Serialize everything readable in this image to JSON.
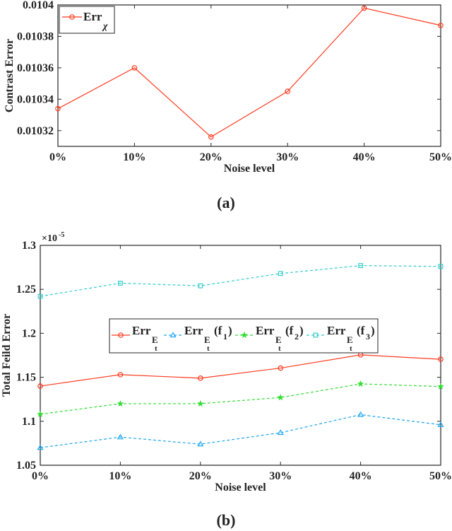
{
  "chart_data": [
    {
      "type": "line",
      "panel_label": "(a)",
      "xlabel": "Noise level",
      "ylabel": "Contrast Error",
      "categories": [
        "0%",
        "10%",
        "20%",
        "30%",
        "40%",
        "50%"
      ],
      "ylim": [
        0.01031,
        0.0104
      ],
      "yticks": [
        0.01032,
        0.01034,
        0.01036,
        0.01038,
        0.0104
      ],
      "ytick_labels": [
        "0.01032",
        "0.01034",
        "0.01036",
        "0.01038",
        "0.0104"
      ],
      "grid": false,
      "legend_position": "top-left",
      "series": [
        {
          "name": "Err",
          "name_subscript": "χ",
          "color": "#ff3b1f",
          "marker": "circle",
          "dash": "solid",
          "values": [
            0.010334,
            0.01036,
            0.010316,
            0.010345,
            0.010398,
            0.010387
          ]
        }
      ]
    },
    {
      "type": "line",
      "panel_label": "(b)",
      "xlabel": "Noise level",
      "ylabel": "Total Feild Error",
      "y_exponent_label": "×10",
      "y_exponent": "-5",
      "categories": [
        "0%",
        "10%",
        "20%",
        "30%",
        "40%",
        "50%"
      ],
      "ylim": [
        1.05,
        1.3
      ],
      "yticks": [
        1.05,
        1.1,
        1.15,
        1.2,
        1.25,
        1.3
      ],
      "ytick_labels": [
        "1.05",
        "1.1",
        "1.15",
        "1.2",
        "1.25",
        "1.3"
      ],
      "grid": false,
      "legend_position": "center",
      "series": [
        {
          "name": "Err",
          "sub": "E",
          "subsub": "t",
          "suffix": "",
          "color": "#ff3b1f",
          "marker": "circle",
          "dash": "solid",
          "values": [
            1.14,
            1.153,
            1.149,
            1.1605,
            1.1755,
            1.1705
          ]
        },
        {
          "name": "Err",
          "sub": "E",
          "subsub": "t",
          "suffix": "(f",
          "suffix_sub": "1",
          "suffix_end": ")",
          "color": "#1ea7f0",
          "marker": "triangle",
          "dash": "dashed",
          "values": [
            1.07,
            1.082,
            1.074,
            1.087,
            1.1075,
            1.096
          ]
        },
        {
          "name": "Err",
          "sub": "E",
          "subsub": "t",
          "suffix": "(f",
          "suffix_sub": "2",
          "suffix_end": ")",
          "color": "#33dd33",
          "marker": "star",
          "dash": "dashed",
          "values": [
            1.108,
            1.12,
            1.12,
            1.127,
            1.1425,
            1.1395
          ]
        },
        {
          "name": "Err",
          "sub": "E",
          "subsub": "t",
          "suffix": "(f",
          "suffix_sub": "3",
          "suffix_end": ")",
          "color": "#33cccc",
          "marker": "square",
          "dash": "dashed",
          "values": [
            1.242,
            1.257,
            1.254,
            1.268,
            1.277,
            1.276
          ]
        }
      ]
    }
  ]
}
